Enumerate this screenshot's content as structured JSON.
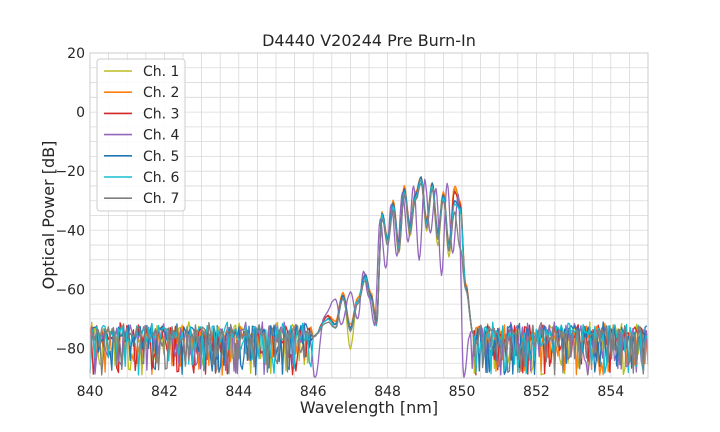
{
  "chart_data": {
    "type": "line",
    "title": "D4440 V20244 Pre Burn-In",
    "xlabel": "Wavelength [nm]",
    "ylabel": "Optical Power [dB]",
    "xlim": [
      840,
      855
    ],
    "ylim": [
      -90,
      20
    ],
    "x_ticks": [
      840,
      842,
      844,
      846,
      848,
      850,
      852,
      854
    ],
    "y_ticks": [
      20,
      0,
      -20,
      -40,
      -60,
      -80
    ],
    "x_minor_step": 0.5,
    "y_minor_step": 5,
    "grid": true,
    "legend_position": "top-left",
    "noise_floor": [
      -89,
      -71
    ],
    "series": [
      {
        "name": "Ch. 1",
        "color": "#bcbd22",
        "x": [
          846.0,
          846.4,
          846.6,
          846.8,
          847.0,
          847.2,
          847.4,
          847.55,
          847.7,
          847.85,
          848.0,
          848.15,
          848.3,
          848.45,
          848.6,
          848.75,
          848.9,
          849.05,
          849.2,
          849.35,
          849.5,
          849.65,
          849.8,
          849.95,
          850.1,
          850.3
        ],
        "y": [
          -76,
          -69,
          -72,
          -61,
          -80,
          -63,
          -55,
          -62,
          -71,
          -34,
          -45,
          -30,
          -48,
          -25,
          -42,
          -28,
          -22,
          -40,
          -25,
          -45,
          -28,
          -49,
          -26,
          -33,
          -60,
          -75
        ]
      },
      {
        "name": "Ch. 2",
        "color": "#ff7f0e",
        "x": [
          846.0,
          846.4,
          846.6,
          846.8,
          847.0,
          847.2,
          847.4,
          847.55,
          847.7,
          847.85,
          848.0,
          848.15,
          848.3,
          848.45,
          848.6,
          848.75,
          848.9,
          849.05,
          849.2,
          849.35,
          849.5,
          849.65,
          849.8,
          849.95,
          850.1,
          850.3
        ],
        "y": [
          -76,
          -69,
          -71,
          -61,
          -72,
          -63,
          -55,
          -61,
          -70,
          -34,
          -42,
          -30,
          -44,
          -25,
          -38,
          -27,
          -22,
          -36,
          -24,
          -40,
          -27,
          -44,
          -25,
          -30,
          -58,
          -75
        ]
      },
      {
        "name": "Ch. 3",
        "color": "#d62728",
        "x": [
          846.0,
          846.4,
          846.6,
          846.8,
          847.0,
          847.2,
          847.4,
          847.55,
          847.7,
          847.85,
          848.0,
          848.15,
          848.3,
          848.45,
          848.6,
          848.75,
          848.9,
          849.05,
          849.2,
          849.35,
          849.5,
          849.65,
          849.8,
          849.95,
          850.1,
          850.3
        ],
        "y": [
          -76,
          -69,
          -72,
          -62,
          -73,
          -64,
          -56,
          -62,
          -71,
          -35,
          -43,
          -31,
          -45,
          -26,
          -39,
          -28,
          -23,
          -37,
          -25,
          -41,
          -28,
          -45,
          -27,
          -31,
          -59,
          -75
        ]
      },
      {
        "name": "Ch. 4",
        "color": "#9467bd",
        "x": [
          845.9,
          846.05,
          846.3,
          846.6,
          846.75,
          847.0,
          847.2,
          847.35,
          847.5,
          847.65,
          847.8,
          847.95,
          848.1,
          848.25,
          848.4,
          848.55,
          848.7,
          848.85,
          849.0,
          849.15,
          849.3,
          849.45,
          849.6,
          849.75,
          849.9,
          850.05,
          850.2
        ],
        "y": [
          -76,
          -90,
          -69,
          -63,
          -72,
          -61,
          -70,
          -54,
          -63,
          -72,
          -36,
          -53,
          -31,
          -49,
          -27,
          -44,
          -25,
          -50,
          -23,
          -41,
          -26,
          -55,
          -24,
          -48,
          -28,
          -90,
          -76
        ]
      },
      {
        "name": "Ch. 5",
        "color": "#1f77b4",
        "x": [
          846.0,
          846.4,
          846.6,
          846.8,
          847.0,
          847.2,
          847.4,
          847.55,
          847.7,
          847.85,
          848.0,
          848.15,
          848.3,
          848.45,
          848.6,
          848.75,
          848.9,
          849.05,
          849.2,
          849.35,
          849.5,
          849.65,
          849.8,
          849.95,
          850.1,
          850.3
        ],
        "y": [
          -76,
          -70,
          -72,
          -62,
          -73,
          -64,
          -55,
          -62,
          -71,
          -34,
          -43,
          -31,
          -44,
          -26,
          -39,
          -28,
          -22,
          -37,
          -24,
          -41,
          -28,
          -45,
          -30,
          -32,
          -59,
          -75
        ]
      },
      {
        "name": "Ch. 6",
        "color": "#17becf",
        "x": [
          846.0,
          846.4,
          846.6,
          846.8,
          847.0,
          847.2,
          847.4,
          847.55,
          847.7,
          847.85,
          848.0,
          848.15,
          848.3,
          848.45,
          848.6,
          848.75,
          848.9,
          849.05,
          849.2,
          849.35,
          849.5,
          849.65,
          849.8,
          849.95,
          850.1,
          850.3
        ],
        "y": [
          -76,
          -70,
          -73,
          -63,
          -74,
          -64,
          -56,
          -63,
          -72,
          -35,
          -44,
          -32,
          -46,
          -27,
          -40,
          -29,
          -23,
          -38,
          -25,
          -42,
          -29,
          -46,
          -31,
          -33,
          -60,
          -75
        ]
      },
      {
        "name": "Ch. 7",
        "color": "#7f7f7f",
        "x": [
          846.0,
          846.4,
          846.6,
          846.8,
          847.0,
          847.2,
          847.4,
          847.55,
          847.7,
          847.85,
          848.0,
          848.15,
          848.3,
          848.45,
          848.6,
          848.75,
          848.9,
          849.05,
          849.2,
          849.35,
          849.5,
          849.65,
          849.8,
          849.95,
          850.1,
          850.3
        ],
        "y": [
          -76,
          -71,
          -73,
          -63,
          -74,
          -65,
          -57,
          -63,
          -72,
          -36,
          -45,
          -33,
          -47,
          -28,
          -41,
          -30,
          -24,
          -39,
          -26,
          -43,
          -30,
          -47,
          -34,
          -46,
          -60,
          -75
        ]
      }
    ]
  }
}
